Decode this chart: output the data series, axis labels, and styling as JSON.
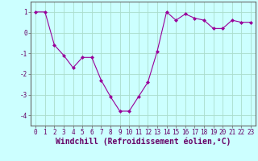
{
  "x": [
    0,
    1,
    2,
    3,
    4,
    5,
    6,
    7,
    8,
    9,
    10,
    11,
    12,
    13,
    14,
    15,
    16,
    17,
    18,
    19,
    20,
    21,
    22,
    23
  ],
  "y": [
    1,
    1,
    -0.6,
    -1.1,
    -1.7,
    -1.2,
    -1.2,
    -2.3,
    -3.1,
    -3.8,
    -3.8,
    -3.1,
    -2.4,
    -0.9,
    1.0,
    0.6,
    0.9,
    0.7,
    0.6,
    0.2,
    0.2,
    0.6,
    0.5,
    0.5
  ],
  "line_color": "#990099",
  "marker": "D",
  "marker_size": 2.0,
  "bg_color": "#ccffff",
  "grid_color": "#aaddcc",
  "xlabel": "Windchill (Refroidissement éolien,°C)",
  "xlim": [
    -0.5,
    23.5
  ],
  "ylim": [
    -4.5,
    1.5
  ],
  "yticks": [
    -4,
    -3,
    -2,
    -1,
    0,
    1
  ],
  "xticks": [
    0,
    1,
    2,
    3,
    4,
    5,
    6,
    7,
    8,
    9,
    10,
    11,
    12,
    13,
    14,
    15,
    16,
    17,
    18,
    19,
    20,
    21,
    22,
    23
  ],
  "tick_fontsize": 5.5,
  "xlabel_fontsize": 7.0,
  "line_width": 0.8
}
